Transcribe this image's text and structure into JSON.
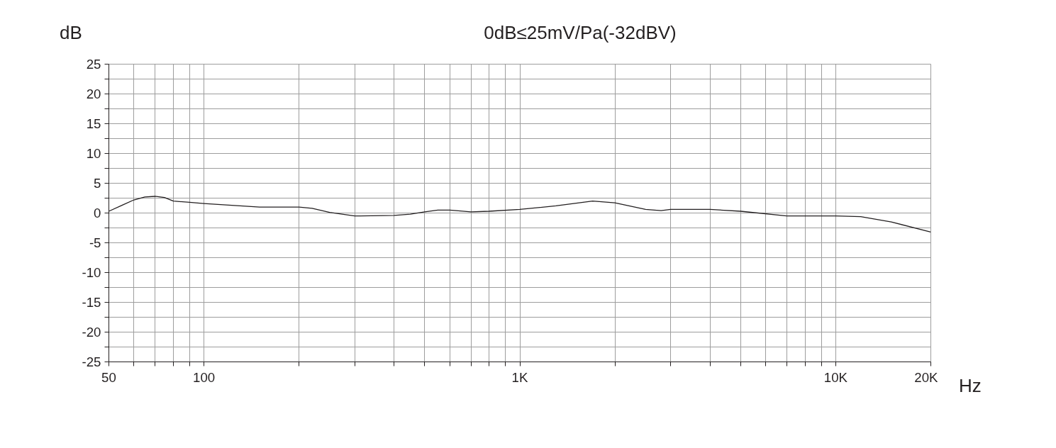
{
  "chart_data": {
    "type": "line",
    "title": "0dB≤25mV/Pa(-32dBV)",
    "xlabel": "Hz",
    "ylabel": "dB",
    "log": "x",
    "grid": true,
    "marker": "none",
    "line_style": "solid",
    "x": [
      50,
      55,
      60,
      65,
      70,
      75,
      80,
      90,
      100,
      150,
      200,
      220,
      250,
      300,
      400,
      450,
      500,
      550,
      600,
      700,
      800,
      1000,
      1300,
      1700,
      2000,
      2500,
      2800,
      3000,
      4000,
      5000,
      7000,
      10000,
      12000,
      15000,
      20000
    ],
    "series": [
      {
        "color": "#231f20",
        "values": [
          0.3,
          1.3,
          2.2,
          2.7,
          2.8,
          2.6,
          2.0,
          1.8,
          1.6,
          1.0,
          1.0,
          0.8,
          0.1,
          -0.5,
          -0.4,
          -0.2,
          0.2,
          0.5,
          0.5,
          0.2,
          0.3,
          0.6,
          1.2,
          2.0,
          1.7,
          0.6,
          0.4,
          0.6,
          0.6,
          0.3,
          -0.5,
          -0.5,
          -0.6,
          -1.5,
          -3.2
        ]
      }
    ],
    "xlim": [
      50,
      20000
    ],
    "ylim": [
      -25,
      25
    ],
    "xticks": [
      50,
      {
        "value": 60,
        "label": null
      },
      {
        "value": 70,
        "label": null
      },
      {
        "value": 80,
        "label": null
      },
      {
        "value": 90,
        "label": null
      },
      100,
      {
        "value": 200,
        "label": null
      },
      {
        "value": 300,
        "label": null
      },
      {
        "value": 400,
        "label": null
      },
      {
        "value": 500,
        "label": null
      },
      {
        "value": 600,
        "label": null
      },
      {
        "value": 700,
        "label": null
      },
      {
        "value": 800,
        "label": null
      },
      {
        "value": 900,
        "label": null
      },
      {
        "value": 1000,
        "label": "1K"
      },
      {
        "value": 2000,
        "label": null
      },
      {
        "value": 3000,
        "label": null
      },
      {
        "value": 4000,
        "label": null
      },
      {
        "value": 5000,
        "label": null
      },
      {
        "value": 6000,
        "label": null
      },
      {
        "value": 7000,
        "label": null
      },
      {
        "value": 8000,
        "label": null
      },
      {
        "value": 9000,
        "label": null
      },
      {
        "value": 10000,
        "label": "10K"
      },
      {
        "value": 20000,
        "label": "20K"
      }
    ],
    "yticks": [
      -25,
      {
        "value": -22.5,
        "label": null
      },
      -20,
      {
        "value": -17.5,
        "label": null
      },
      -15,
      {
        "value": -12.5,
        "label": null
      },
      -10,
      {
        "value": -7.5,
        "label": null
      },
      -5,
      {
        "value": -2.5,
        "label": null
      },
      0,
      {
        "value": 2.5,
        "label": null
      },
      5,
      {
        "value": 7.5,
        "label": null
      },
      10,
      {
        "value": 12.5,
        "label": null
      },
      15,
      {
        "value": 17.5,
        "label": null
      },
      20,
      {
        "value": 22.5,
        "label": null
      },
      25
    ]
  }
}
